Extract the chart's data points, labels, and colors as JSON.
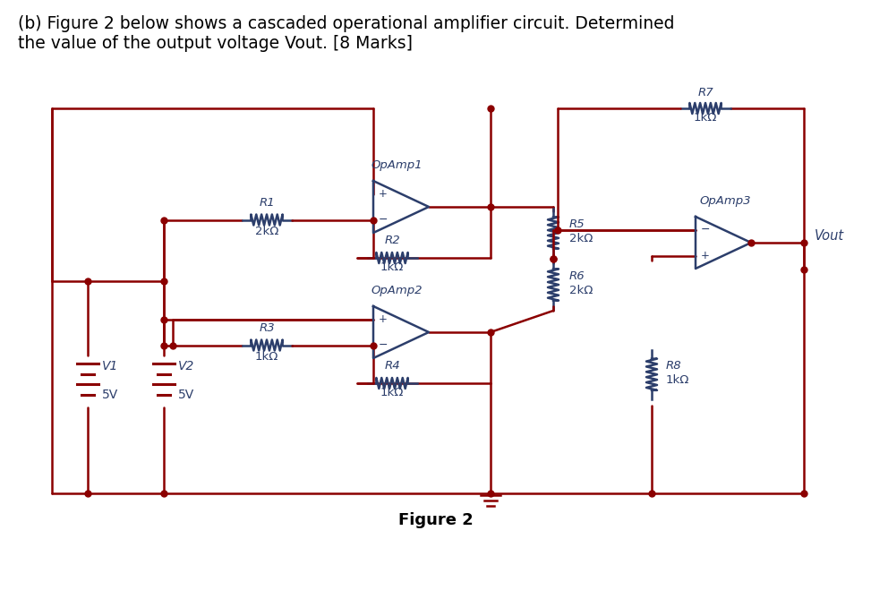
{
  "title_line1": "(b) Figure 2 below shows a cascaded operational amplifier circuit. Determined",
  "title_line2": "the value of the output voltage Vout. [8 Marks]",
  "figure_label": "Figure 2",
  "wire_color": "#8B0000",
  "comp_color": "#2c3e6b",
  "bg_color": "#ffffff",
  "lw_wire": 1.8,
  "lw_comp": 1.8,
  "R1_label": "R1",
  "R1_val": "2kΩ",
  "R2_label": "R2",
  "R2_val": "1kΩ",
  "R3_label": "R3",
  "R3_val": "1kΩ",
  "R4_label": "R4",
  "R4_val": "1kΩ",
  "R5_label": "R5",
  "R5_val": "2kΩ",
  "R6_label": "R6",
  "R6_val": "2kΩ",
  "R7_label": "R7",
  "R7_val": "1kΩ",
  "R8_label": "R8",
  "R8_val": "1kΩ",
  "OA1_label": "OpAmp1",
  "OA2_label": "OpAmp2",
  "OA3_label": "OpAmp3",
  "V1_label": "V1",
  "V1_val": "5V",
  "V2_label": "V2",
  "V2_val": "5V",
  "vout_label": "Vout",
  "title_fontsize": 13.5,
  "label_fontsize": 9.5,
  "fig_label_fontsize": 13
}
